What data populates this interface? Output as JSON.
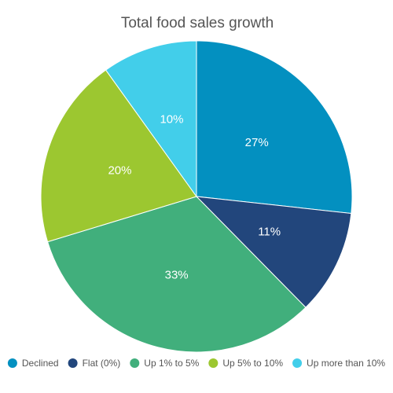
{
  "chart_data": {
    "type": "pie",
    "title": "Total food sales growth",
    "categories": [
      "Declined",
      "Flat (0%)",
      "Up 1% to 5%",
      "Up 5% to 10%",
      "Up more than 10%"
    ],
    "values": [
      27,
      11,
      33,
      20,
      10
    ],
    "data_labels": [
      "27%",
      "11%",
      "33%",
      "20%",
      "10%"
    ],
    "colors": [
      "#0390C0",
      "#22467C",
      "#41AF7C",
      "#9CC730",
      "#42CEEA"
    ],
    "start_angle": "12 o'clock",
    "direction": "clockwise",
    "legend": "bottom"
  }
}
